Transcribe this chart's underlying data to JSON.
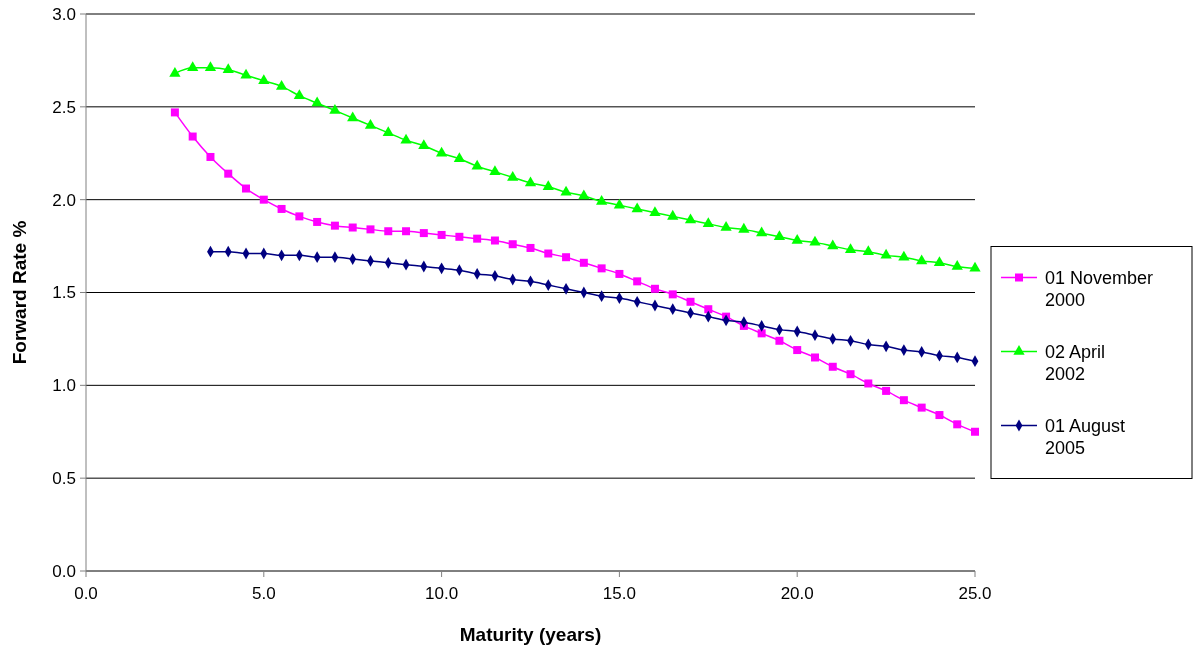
{
  "chart_data": {
    "type": "line",
    "xlabel": "Maturity (years)",
    "ylabel": "Forward Rate %",
    "xlim": [
      0,
      25
    ],
    "xticks": [
      {
        "value": 0,
        "label": "0.0"
      },
      {
        "value": 5,
        "label": "5.0"
      },
      {
        "value": 10,
        "label": "10.0"
      },
      {
        "value": 15,
        "label": "15.0"
      },
      {
        "value": 20,
        "label": "20.0"
      },
      {
        "value": 25,
        "label": "25.0"
      }
    ],
    "ylim": [
      0,
      3
    ],
    "yticks": [
      {
        "value": 0,
        "label": "0.0"
      },
      {
        "value": 0.5,
        "label": "0.5"
      },
      {
        "value": 1,
        "label": "1.0"
      },
      {
        "value": 1.5,
        "label": "1.5"
      },
      {
        "value": 2,
        "label": "2.0"
      },
      {
        "value": 2.5,
        "label": "2.5"
      },
      {
        "value": 3,
        "label": "3.0"
      }
    ],
    "grid": "y",
    "legend": "right",
    "line_style": "solid",
    "series": [
      {
        "name": "01 November 2000",
        "color": "#ff00ff",
        "marker": "square",
        "x": [
          2.5,
          3,
          3.5,
          4,
          4.5,
          5,
          5.5,
          6,
          6.5,
          7,
          7.5,
          8,
          8.5,
          9,
          9.5,
          10,
          10.5,
          11,
          11.5,
          12,
          12.5,
          13,
          13.5,
          14,
          14.5,
          15,
          15.5,
          16,
          16.5,
          17,
          17.5,
          18,
          18.5,
          19,
          19.5,
          20,
          20.5,
          21,
          21.5,
          22,
          22.5,
          23,
          23.5,
          24,
          24.5,
          25
        ],
        "values": [
          2.47,
          2.34,
          2.23,
          2.14,
          2.06,
          2.0,
          1.95,
          1.91,
          1.88,
          1.86,
          1.85,
          1.84,
          1.83,
          1.83,
          1.82,
          1.81,
          1.8,
          1.79,
          1.78,
          1.76,
          1.74,
          1.71,
          1.69,
          1.66,
          1.63,
          1.6,
          1.56,
          1.52,
          1.49,
          1.45,
          1.41,
          1.37,
          1.32,
          1.28,
          1.24,
          1.19,
          1.15,
          1.1,
          1.06,
          1.01,
          0.97,
          0.92,
          0.88,
          0.84,
          0.79,
          0.75
        ]
      },
      {
        "name": "02 April 2002",
        "color": "#00ff00",
        "marker": "triangle",
        "x": [
          2.5,
          3,
          3.5,
          4,
          4.5,
          5,
          5.5,
          6,
          6.5,
          7,
          7.5,
          8,
          8.5,
          9,
          9.5,
          10,
          10.5,
          11,
          11.5,
          12,
          12.5,
          13,
          13.5,
          14,
          14.5,
          15,
          15.5,
          16,
          16.5,
          17,
          17.5,
          18,
          18.5,
          19,
          19.5,
          20,
          20.5,
          21,
          21.5,
          22,
          22.5,
          23,
          23.5,
          24,
          24.5,
          25
        ],
        "values": [
          2.68,
          2.71,
          2.71,
          2.7,
          2.67,
          2.64,
          2.61,
          2.56,
          2.52,
          2.48,
          2.44,
          2.4,
          2.36,
          2.32,
          2.29,
          2.25,
          2.22,
          2.18,
          2.15,
          2.12,
          2.09,
          2.07,
          2.04,
          2.02,
          1.99,
          1.97,
          1.95,
          1.93,
          1.91,
          1.89,
          1.87,
          1.85,
          1.84,
          1.82,
          1.8,
          1.78,
          1.77,
          1.75,
          1.73,
          1.72,
          1.7,
          1.69,
          1.67,
          1.66,
          1.64,
          1.63
        ]
      },
      {
        "name": "01 August 2005",
        "color": "#000080",
        "marker": "diamond",
        "x": [
          3.5,
          4,
          4.5,
          5,
          5.5,
          6,
          6.5,
          7,
          7.5,
          8,
          8.5,
          9,
          9.5,
          10,
          10.5,
          11,
          11.5,
          12,
          12.5,
          13,
          13.5,
          14,
          14.5,
          15,
          15.5,
          16,
          16.5,
          17,
          17.5,
          18,
          18.5,
          19,
          19.5,
          20,
          20.5,
          21,
          21.5,
          22,
          22.5,
          23,
          23.5,
          24,
          24.5,
          25
        ],
        "values": [
          1.72,
          1.72,
          1.71,
          1.71,
          1.7,
          1.7,
          1.69,
          1.69,
          1.68,
          1.67,
          1.66,
          1.65,
          1.64,
          1.63,
          1.62,
          1.6,
          1.59,
          1.57,
          1.56,
          1.54,
          1.52,
          1.5,
          1.48,
          1.47,
          1.45,
          1.43,
          1.41,
          1.39,
          1.37,
          1.35,
          1.34,
          1.32,
          1.3,
          1.29,
          1.27,
          1.25,
          1.24,
          1.22,
          1.21,
          1.19,
          1.18,
          1.16,
          1.15,
          1.13
        ]
      }
    ]
  }
}
